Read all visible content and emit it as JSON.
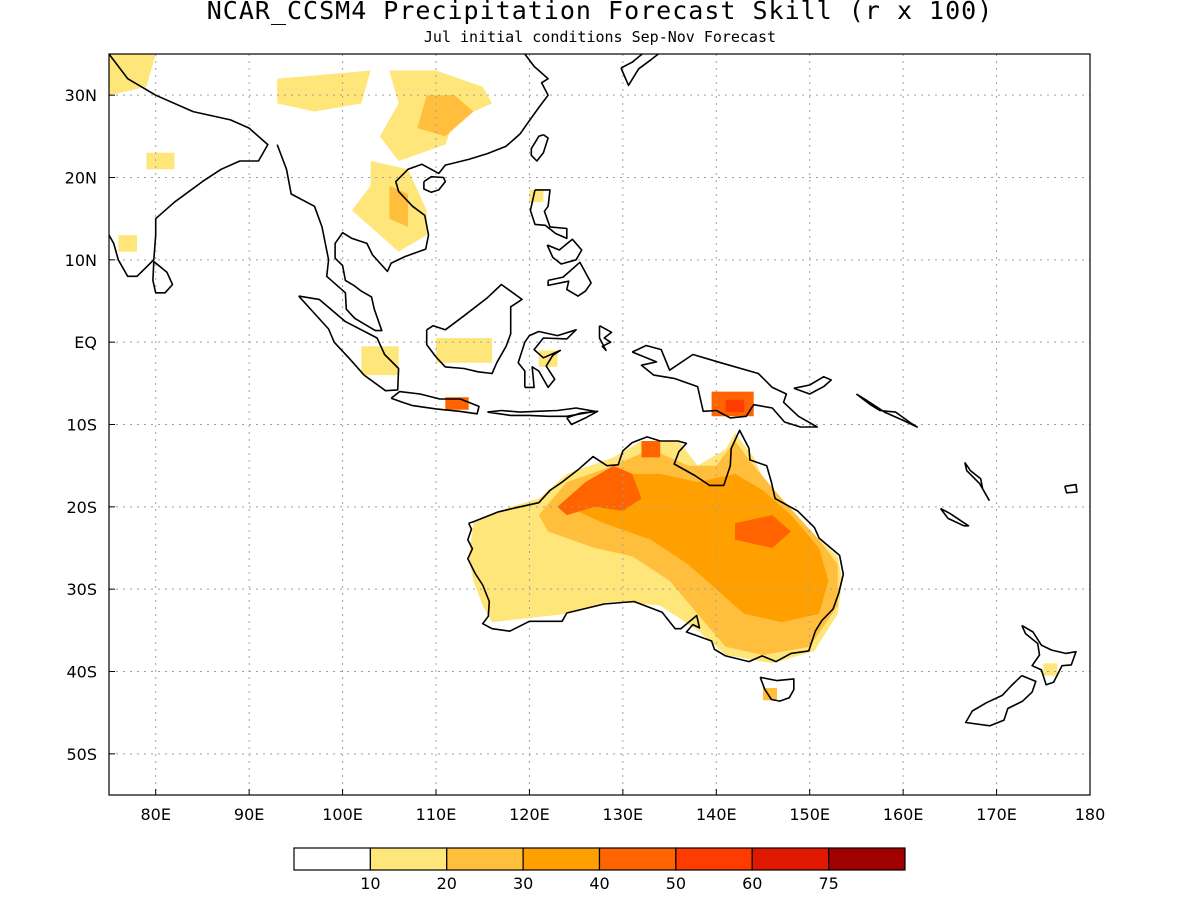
{
  "header": {
    "title": "NCAR_CCSM4 Precipitation Forecast Skill (r x 100)",
    "subtitle": "Jul initial conditions  Sep-Nov Forecast"
  },
  "map": {
    "lon_range": [
      75,
      180
    ],
    "lat_range": [
      -55,
      35
    ],
    "lat_labels": [
      {
        "lat": 30,
        "text": "30N"
      },
      {
        "lat": 20,
        "text": "20N"
      },
      {
        "lat": 10,
        "text": "10N"
      },
      {
        "lat": 0,
        "text": "EQ"
      },
      {
        "lat": -10,
        "text": "10S"
      },
      {
        "lat": -20,
        "text": "20S"
      },
      {
        "lat": -30,
        "text": "30S"
      },
      {
        "lat": -40,
        "text": "40S"
      },
      {
        "lat": -50,
        "text": "50S"
      }
    ],
    "lon_labels": [
      {
        "lon": 80,
        "text": "80E"
      },
      {
        "lon": 90,
        "text": "90E"
      },
      {
        "lon": 100,
        "text": "100E"
      },
      {
        "lon": 110,
        "text": "110E"
      },
      {
        "lon": 120,
        "text": "120E"
      },
      {
        "lon": 130,
        "text": "130E"
      },
      {
        "lon": 140,
        "text": "140E"
      },
      {
        "lon": 150,
        "text": "150E"
      },
      {
        "lon": 160,
        "text": "160E"
      },
      {
        "lon": 170,
        "text": "170E"
      },
      {
        "lon": 180,
        "text": "180"
      }
    ],
    "skill_regions": [
      {
        "name": "china",
        "level": 1,
        "poly": [
          [
            105,
            33
          ],
          [
            110,
            33
          ],
          [
            115,
            31
          ],
          [
            116,
            29
          ],
          [
            112,
            27
          ],
          [
            111,
            24
          ],
          [
            106,
            22
          ],
          [
            104,
            25
          ],
          [
            106,
            29
          ]
        ]
      },
      {
        "name": "china-core",
        "level": 2,
        "poly": [
          [
            109,
            30
          ],
          [
            112,
            30
          ],
          [
            114,
            28
          ],
          [
            111,
            25
          ],
          [
            108,
            26
          ]
        ]
      },
      {
        "name": "north-india",
        "level": 1,
        "poly": [
          [
            75,
            35
          ],
          [
            80,
            35
          ],
          [
            79,
            31
          ],
          [
            75,
            30
          ]
        ]
      },
      {
        "name": "himalaya",
        "level": 1,
        "poly": [
          [
            93,
            32
          ],
          [
            103,
            33
          ],
          [
            102,
            29
          ],
          [
            97,
            28
          ],
          [
            93,
            29
          ]
        ]
      },
      {
        "name": "india-central",
        "level": 1,
        "poly": [
          [
            79,
            23
          ],
          [
            82,
            23
          ],
          [
            82,
            21
          ],
          [
            79,
            21
          ]
        ]
      },
      {
        "name": "india-west",
        "level": 1,
        "poly": [
          [
            76,
            13
          ],
          [
            78,
            13
          ],
          [
            78,
            11
          ],
          [
            76,
            11
          ]
        ]
      },
      {
        "name": "indochina",
        "level": 1,
        "poly": [
          [
            103,
            22
          ],
          [
            107,
            21
          ],
          [
            109,
            16
          ],
          [
            109,
            13
          ],
          [
            106,
            11
          ],
          [
            104,
            13
          ],
          [
            101,
            16
          ],
          [
            103,
            19
          ]
        ]
      },
      {
        "name": "indochina-core",
        "level": 2,
        "poly": [
          [
            105,
            19
          ],
          [
            107,
            18
          ],
          [
            107,
            14
          ],
          [
            105,
            15
          ]
        ]
      },
      {
        "name": "philippines",
        "level": 1,
        "poly": [
          [
            120,
            18.5
          ],
          [
            121.5,
            18.5
          ],
          [
            121.5,
            17
          ],
          [
            120,
            17
          ]
        ]
      },
      {
        "name": "borneo",
        "level": 1,
        "poly": [
          [
            110,
            0.5
          ],
          [
            116,
            0.5
          ],
          [
            116,
            -2.5
          ],
          [
            110,
            -2.5
          ]
        ]
      },
      {
        "name": "sumatra-s",
        "level": 1,
        "poly": [
          [
            102,
            -0.5
          ],
          [
            106,
            -0.5
          ],
          [
            106,
            -4
          ],
          [
            102,
            -4
          ]
        ]
      },
      {
        "name": "sulawesi",
        "level": 1,
        "poly": [
          [
            121,
            -1
          ],
          [
            123,
            -1
          ],
          [
            123,
            -3
          ],
          [
            121,
            -3
          ]
        ]
      },
      {
        "name": "java",
        "level": 4,
        "poly": [
          [
            111,
            -6.7
          ],
          [
            113.5,
            -6.7
          ],
          [
            113.5,
            -8.2
          ],
          [
            111,
            -8.2
          ]
        ]
      },
      {
        "name": "png",
        "level": 4,
        "poly": [
          [
            139.5,
            -6
          ],
          [
            144,
            -6
          ],
          [
            144,
            -9
          ],
          [
            139.5,
            -9
          ]
        ]
      },
      {
        "name": "png-core",
        "level": 5,
        "poly": [
          [
            141,
            -7
          ],
          [
            143,
            -7
          ],
          [
            143,
            -8.5
          ],
          [
            141,
            -8.5
          ]
        ]
      },
      {
        "name": "australia",
        "level": 1,
        "poly": [
          [
            118,
            -20
          ],
          [
            121,
            -19
          ],
          [
            124,
            -16
          ],
          [
            129,
            -14
          ],
          [
            132,
            -12
          ],
          [
            136,
            -12
          ],
          [
            138,
            -15
          ],
          [
            141,
            -13
          ],
          [
            142,
            -11
          ],
          [
            144,
            -14
          ],
          [
            146,
            -19
          ],
          [
            150,
            -23
          ],
          [
            153,
            -26
          ],
          [
            153.5,
            -29
          ],
          [
            153,
            -33
          ],
          [
            150.5,
            -37.5
          ],
          [
            146,
            -39
          ],
          [
            141,
            -38
          ],
          [
            138,
            -35
          ],
          [
            134,
            -32
          ],
          [
            129,
            -31.5
          ],
          [
            124,
            -33
          ],
          [
            120,
            -33.5
          ],
          [
            116,
            -34
          ],
          [
            115,
            -32
          ],
          [
            114,
            -29
          ],
          [
            113.5,
            -26
          ],
          [
            114,
            -22
          ]
        ]
      },
      {
        "name": "australia-30",
        "level": 2,
        "poly": [
          [
            124,
            -17
          ],
          [
            129,
            -15
          ],
          [
            133,
            -13
          ],
          [
            137,
            -15
          ],
          [
            140,
            -15
          ],
          [
            142,
            -12
          ],
          [
            144,
            -15
          ],
          [
            147,
            -19
          ],
          [
            151,
            -24
          ],
          [
            153,
            -27
          ],
          [
            153,
            -32
          ],
          [
            150,
            -37
          ],
          [
            145,
            -38
          ],
          [
            141,
            -37
          ],
          [
            138,
            -33
          ],
          [
            135,
            -29
          ],
          [
            131,
            -26
          ],
          [
            127,
            -25
          ],
          [
            122,
            -23
          ],
          [
            121,
            -21
          ]
        ]
      },
      {
        "name": "australia-40",
        "level": 3,
        "poly": [
          [
            126,
            -17
          ],
          [
            130,
            -16
          ],
          [
            134,
            -16
          ],
          [
            138,
            -17
          ],
          [
            142,
            -16
          ],
          [
            145,
            -18
          ],
          [
            148,
            -21
          ],
          [
            151,
            -25
          ],
          [
            152,
            -29
          ],
          [
            151,
            -33
          ],
          [
            147,
            -34
          ],
          [
            143,
            -33
          ],
          [
            140,
            -30
          ],
          [
            137,
            -27
          ],
          [
            133,
            -24
          ],
          [
            128,
            -22
          ],
          [
            124,
            -20
          ]
        ]
      },
      {
        "name": "australia-nw-50",
        "level": 4,
        "poly": [
          [
            123,
            -20
          ],
          [
            126,
            -17
          ],
          [
            129,
            -15
          ],
          [
            131,
            -16
          ],
          [
            132,
            -19
          ],
          [
            130,
            -20.5
          ],
          [
            127,
            -20
          ],
          [
            124,
            -21
          ]
        ]
      },
      {
        "name": "australia-ne-50",
        "level": 4,
        "poly": [
          [
            142,
            -22
          ],
          [
            146,
            -21
          ],
          [
            148,
            -23
          ],
          [
            146,
            -25
          ],
          [
            142,
            -24
          ]
        ]
      },
      {
        "name": "australia-top",
        "level": 4,
        "poly": [
          [
            132,
            -12
          ],
          [
            134,
            -12
          ],
          [
            134,
            -14
          ],
          [
            132,
            -14
          ]
        ]
      },
      {
        "name": "tasmania",
        "level": 2,
        "poly": [
          [
            145,
            -42
          ],
          [
            146.5,
            -42
          ],
          [
            146.5,
            -43.5
          ],
          [
            145,
            -43.5
          ]
        ]
      },
      {
        "name": "new-zealand",
        "level": 1,
        "poly": [
          [
            175,
            -39
          ],
          [
            176.5,
            -39
          ],
          [
            176.5,
            -40.5
          ],
          [
            175,
            -40.5
          ]
        ]
      }
    ]
  },
  "colorbar": {
    "colors": [
      "#ffffff",
      "#ffe67a",
      "#ffbe3c",
      "#ffa000",
      "#ff6400",
      "#ff3c00",
      "#e01800",
      "#a00000"
    ],
    "labels": [
      "10",
      "20",
      "30",
      "40",
      "50",
      "60",
      "75"
    ]
  }
}
